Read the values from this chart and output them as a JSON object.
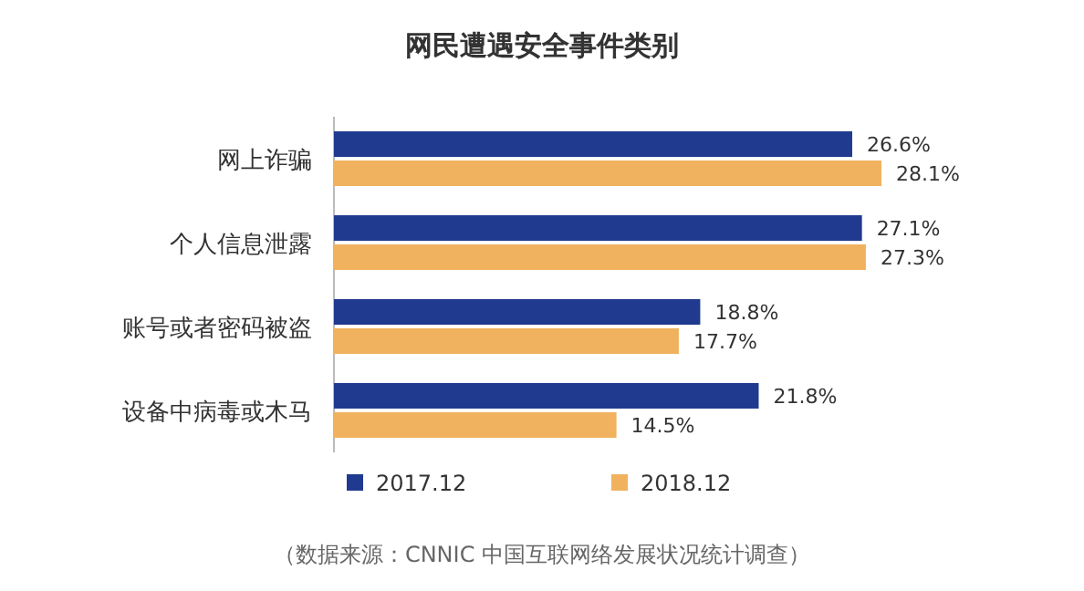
{
  "chart_data": {
    "type": "bar",
    "orientation": "horizontal",
    "title": "网民遭遇安全事件类别",
    "categories": [
      "网上诈骗",
      "个人信息泄露",
      "账号或者密码被盗",
      "设备中病毒或木马"
    ],
    "series": [
      {
        "name": "2017.12",
        "color": "#1f3a8f",
        "values": [
          26.6,
          27.1,
          18.8,
          21.8
        ],
        "value_labels": [
          "26.6%",
          "27.1%",
          "18.8%",
          "21.8%"
        ]
      },
      {
        "name": "2018.12",
        "color": "#f0b25e",
        "values": [
          28.1,
          27.3,
          17.7,
          14.5
        ],
        "value_labels": [
          "28.1%",
          "27.3%",
          "17.7%",
          "14.5%"
        ]
      }
    ],
    "legend": "bottom",
    "annotations": [
      "（数据来源：CNNIC 中国互联网络发展状况统计调查）"
    ]
  }
}
